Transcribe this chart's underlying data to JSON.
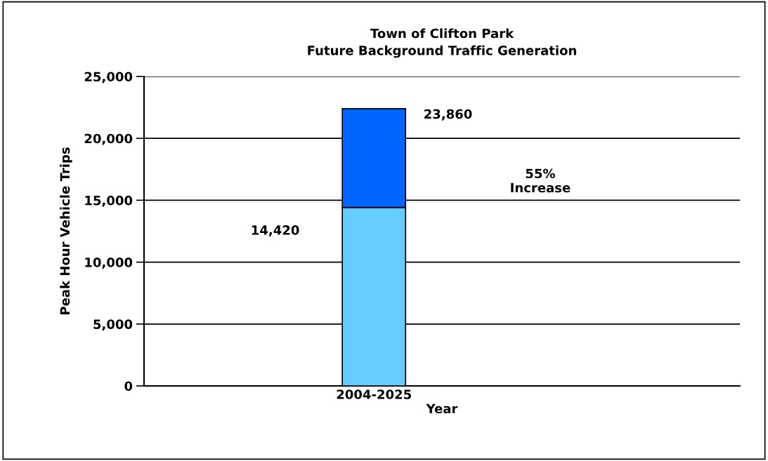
{
  "chart_data": {
    "type": "bar",
    "stacked": true,
    "title": "Town of Clifton Park\nFuture Background Traffic Generation",
    "xlabel": "Year",
    "ylabel": "Peak Hour Vehicle Trips",
    "categories": [
      "2004-2025"
    ],
    "series": [
      {
        "color": "#66ccff",
        "values": [
          14420
        ]
      },
      {
        "color": "#0066ff",
        "values": [
          7980
        ]
      }
    ],
    "ylim": [
      0,
      25000
    ],
    "yticks": [
      {
        "value": 0,
        "label": "0"
      },
      {
        "value": 5000,
        "label": "5,000"
      },
      {
        "value": 10000,
        "label": "10,000"
      },
      {
        "value": 15000,
        "label": "15,000"
      },
      {
        "value": 20000,
        "label": "20,000"
      },
      {
        "value": 25000,
        "label": "25,000"
      }
    ],
    "grid": "y",
    "annotations": [
      "14,420",
      "23,860",
      "55%\nIncrease"
    ]
  }
}
